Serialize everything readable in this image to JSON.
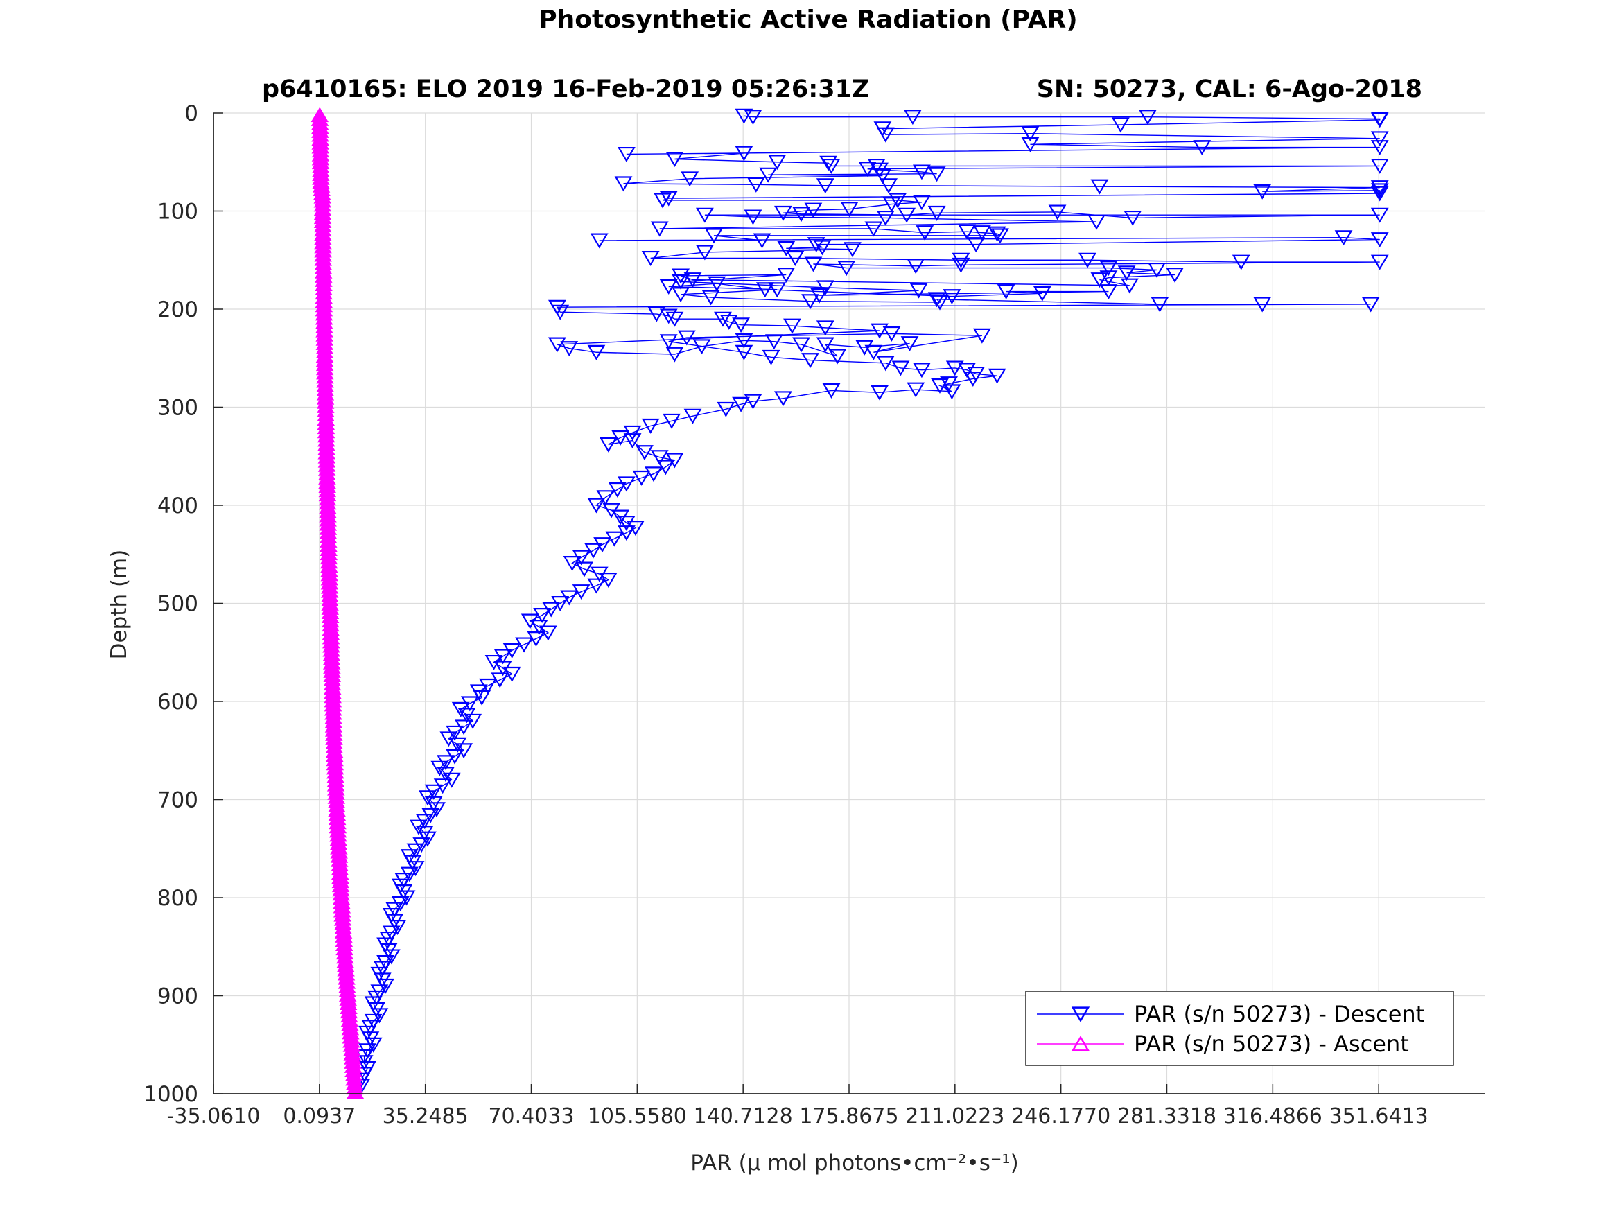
{
  "chart_data": {
    "type": "scatter",
    "title": "Photosynthetic Active Radiation (PAR)",
    "subtitle_left": "p6410165: ELO 2019 16-Feb-2019 05:26:31Z",
    "subtitle_right": "SN: 50273, CAL: 6-Ago-2018",
    "xlabel": "PAR (μ mol photons•cm⁻²•s⁻¹)",
    "ylabel": "Depth (m)",
    "xlim": [
      -35.061,
      386.7958
    ],
    "ylim": [
      0,
      1000
    ],
    "y_reversed": true,
    "grid": true,
    "legend_position": "bottom-right",
    "x_ticks": [
      -35.061,
      0.0937,
      35.2485,
      70.4033,
      105.558,
      140.7128,
      175.8675,
      211.0223,
      246.177,
      281.3318,
      316.4866,
      351.6413
    ],
    "x_tick_labels": [
      "-35.0610",
      "0.0937",
      "35.2485",
      "70.4033",
      "105.5580",
      "140.7128",
      "175.8675",
      "211.0223",
      "246.1770",
      "281.3318",
      "316.4866",
      "351.6413"
    ],
    "y_ticks": [
      0,
      100,
      200,
      300,
      400,
      500,
      600,
      700,
      800,
      900,
      1000
    ],
    "y_tick_labels": [
      "0",
      "100",
      "200",
      "300",
      "400",
      "500",
      "600",
      "700",
      "800",
      "900",
      "1000"
    ],
    "series": [
      {
        "name": "PAR (s/n 50273) - Descent",
        "color": "#0000ff",
        "marker": "triangle-down",
        "points": [
          [
            141,
            3
          ],
          [
            144,
            4
          ],
          [
            197,
            4
          ],
          [
            275,
            4
          ],
          [
            352,
            6
          ],
          [
            352,
            7
          ],
          [
            266,
            12
          ],
          [
            187,
            16
          ],
          [
            188,
            22
          ],
          [
            236,
            21
          ],
          [
            352,
            26
          ],
          [
            236,
            32
          ],
          [
            293,
            35
          ],
          [
            352,
            35
          ],
          [
            102,
            42
          ],
          [
            141,
            41
          ],
          [
            118,
            47
          ],
          [
            152,
            50
          ],
          [
            169,
            51
          ],
          [
            170,
            54
          ],
          [
            185,
            54
          ],
          [
            352,
            54
          ],
          [
            182,
            57
          ],
          [
            186,
            58
          ],
          [
            200,
            60
          ],
          [
            205,
            62
          ],
          [
            149,
            63
          ],
          [
            187,
            64
          ],
          [
            123,
            67
          ],
          [
            101,
            72
          ],
          [
            145,
            73
          ],
          [
            168,
            74
          ],
          [
            189,
            74
          ],
          [
            259,
            75
          ],
          [
            352,
            76
          ],
          [
            313,
            80
          ],
          [
            352,
            79
          ],
          [
            352,
            82
          ],
          [
            116,
            87
          ],
          [
            114,
            89
          ],
          [
            192,
            89
          ],
          [
            200,
            91
          ],
          [
            190,
            93
          ],
          [
            176,
            98
          ],
          [
            164,
            99
          ],
          [
            154,
            102
          ],
          [
            160,
            103
          ],
          [
            195,
            104
          ],
          [
            205,
            102
          ],
          [
            245,
            101
          ],
          [
            270,
            107
          ],
          [
            352,
            104
          ],
          [
            128,
            104
          ],
          [
            144,
            106
          ],
          [
            188,
            107
          ],
          [
            258,
            111
          ],
          [
            113,
            118
          ],
          [
            184,
            118
          ],
          [
            201,
            122
          ],
          [
            215,
            121
          ],
          [
            220,
            122
          ],
          [
            225,
            123
          ],
          [
            226,
            125
          ],
          [
            131,
            125
          ],
          [
            147,
            130
          ],
          [
            93,
            130
          ],
          [
            340,
            127
          ],
          [
            352,
            129
          ],
          [
            218,
            134
          ],
          [
            165,
            134
          ],
          [
            167,
            137
          ],
          [
            155,
            138
          ],
          [
            177,
            139
          ],
          [
            128,
            142
          ],
          [
            110,
            148
          ],
          [
            158,
            148
          ],
          [
            213,
            150
          ],
          [
            255,
            150
          ],
          [
            306,
            152
          ],
          [
            352,
            152
          ],
          [
            213,
            155
          ],
          [
            198,
            156
          ],
          [
            164,
            154
          ],
          [
            175,
            158
          ],
          [
            262,
            158
          ],
          [
            278,
            160
          ],
          [
            268,
            163
          ],
          [
            284,
            165
          ],
          [
            262,
            168
          ],
          [
            259,
            170
          ],
          [
            269,
            176
          ],
          [
            124,
            170
          ],
          [
            120,
            166
          ],
          [
            155,
            165
          ],
          [
            120,
            172
          ],
          [
            168,
            178
          ],
          [
            199,
            181
          ],
          [
            166,
            186
          ],
          [
            262,
            182
          ],
          [
            228,
            182
          ],
          [
            240,
            184
          ],
          [
            210,
            187
          ],
          [
            148,
            180
          ],
          [
            132,
            174
          ],
          [
            116,
            177
          ],
          [
            152,
            180
          ],
          [
            120,
            185
          ],
          [
            130,
            188
          ],
          [
            163,
            192
          ],
          [
            206,
            193
          ],
          [
            205,
            190
          ],
          [
            279,
            195
          ],
          [
            313,
            195
          ],
          [
            349,
            195
          ],
          [
            79,
            198
          ],
          [
            80,
            203
          ],
          [
            112,
            205
          ],
          [
            116,
            207
          ],
          [
            118,
            210
          ],
          [
            134,
            210
          ],
          [
            136,
            213
          ],
          [
            140,
            216
          ],
          [
            157,
            217
          ],
          [
            168,
            219
          ],
          [
            186,
            222
          ],
          [
            79,
            236
          ],
          [
            83,
            240
          ],
          [
            92,
            244
          ],
          [
            118,
            246
          ],
          [
            127,
            238
          ],
          [
            141,
            232
          ],
          [
            151,
            233
          ],
          [
            160,
            236
          ],
          [
            172,
            248
          ],
          [
            168,
            236
          ],
          [
            181,
            239
          ],
          [
            196,
            235
          ],
          [
            184,
            244
          ],
          [
            220,
            227
          ],
          [
            190,
            225
          ],
          [
            122,
            229
          ],
          [
            116,
            233
          ],
          [
            141,
            244
          ],
          [
            150,
            249
          ],
          [
            163,
            252
          ],
          [
            188,
            255
          ],
          [
            193,
            260
          ],
          [
            200,
            262
          ],
          [
            211,
            260
          ],
          [
            215,
            262
          ],
          [
            218,
            266
          ],
          [
            225,
            268
          ],
          [
            217,
            271
          ],
          [
            209,
            276
          ],
          [
            206,
            278
          ],
          [
            210,
            284
          ],
          [
            198,
            282
          ],
          [
            186,
            285
          ],
          [
            170,
            283
          ],
          [
            154,
            291
          ],
          [
            144,
            294
          ],
          [
            140,
            297
          ],
          [
            135,
            302
          ],
          [
            124,
            309
          ],
          [
            117,
            314
          ],
          [
            110,
            319
          ],
          [
            104,
            326
          ],
          [
            100,
            331
          ],
          [
            96,
            338
          ],
          [
            104,
            334
          ],
          [
            108,
            346
          ],
          [
            113,
            351
          ],
          [
            118,
            354
          ],
          [
            115,
            361
          ],
          [
            111,
            368
          ],
          [
            107,
            372
          ],
          [
            102,
            378
          ],
          [
            99,
            384
          ],
          [
            95,
            392
          ],
          [
            92,
            400
          ],
          [
            97,
            405
          ],
          [
            100,
            412
          ],
          [
            102,
            418
          ],
          [
            105,
            423
          ],
          [
            102,
            428
          ],
          [
            98,
            434
          ],
          [
            94,
            440
          ],
          [
            91,
            446
          ],
          [
            87,
            453
          ],
          [
            84,
            459
          ],
          [
            88,
            465
          ],
          [
            93,
            470
          ],
          [
            96,
            476
          ],
          [
            92,
            482
          ],
          [
            87,
            488
          ],
          [
            83,
            494
          ],
          [
            80,
            500
          ],
          [
            77,
            506
          ],
          [
            74,
            512
          ],
          [
            70,
            518
          ],
          [
            73,
            524
          ],
          [
            76,
            530
          ],
          [
            72,
            536
          ],
          [
            68,
            542
          ],
          [
            64,
            548
          ],
          [
            61,
            554
          ],
          [
            58,
            560
          ],
          [
            61,
            566
          ],
          [
            64,
            572
          ],
          [
            60,
            578
          ],
          [
            56,
            584
          ],
          [
            53,
            590
          ],
          [
            54,
            596
          ],
          [
            50,
            602
          ],
          [
            47,
            608
          ],
          [
            49,
            614
          ],
          [
            51,
            620
          ],
          [
            48,
            626
          ],
          [
            45,
            632
          ],
          [
            43,
            638
          ],
          [
            46,
            644
          ],
          [
            48,
            650
          ],
          [
            45,
            656
          ],
          [
            42,
            662
          ],
          [
            40,
            668
          ],
          [
            42,
            674
          ],
          [
            44,
            680
          ],
          [
            41,
            686
          ],
          [
            38,
            692
          ],
          [
            36,
            698
          ],
          [
            38,
            704
          ],
          [
            39,
            710
          ],
          [
            37,
            716
          ],
          [
            35,
            722
          ],
          [
            33,
            728
          ],
          [
            35,
            734
          ],
          [
            36,
            740
          ],
          [
            34,
            746
          ],
          [
            32,
            752
          ],
          [
            30,
            758
          ],
          [
            31,
            764
          ],
          [
            32,
            770
          ],
          [
            30,
            776
          ],
          [
            28,
            782
          ],
          [
            27,
            788
          ],
          [
            28,
            794
          ],
          [
            29,
            800
          ],
          [
            27,
            806
          ],
          [
            25,
            812
          ],
          [
            24,
            818
          ],
          [
            25,
            824
          ],
          [
            26,
            830
          ],
          [
            24,
            836
          ],
          [
            23,
            842
          ],
          [
            22,
            848
          ],
          [
            23,
            854
          ],
          [
            24,
            860
          ],
          [
            22,
            866
          ],
          [
            21,
            872
          ],
          [
            20,
            878
          ],
          [
            21,
            884
          ],
          [
            22,
            890
          ],
          [
            20,
            896
          ],
          [
            19,
            902
          ],
          [
            18,
            908
          ],
          [
            19,
            914
          ],
          [
            20,
            920
          ],
          [
            18,
            926
          ],
          [
            17,
            932
          ],
          [
            16,
            938
          ],
          [
            17,
            944
          ],
          [
            18,
            950
          ],
          [
            16,
            956
          ],
          [
            15,
            962
          ],
          [
            15,
            968
          ],
          [
            16,
            974
          ],
          [
            15,
            980
          ],
          [
            14,
            986
          ],
          [
            14,
            992
          ]
        ]
      },
      {
        "name": "PAR (s/n 50273) - Ascent",
        "color": "#ff00ff",
        "marker": "triangle-up",
        "points": [
          [
            12,
            998
          ],
          [
            11.5,
            980
          ],
          [
            10.8,
            950
          ],
          [
            10,
            920
          ],
          [
            9.3,
            890
          ],
          [
            8.6,
            860
          ],
          [
            8,
            830
          ],
          [
            7.4,
            800
          ],
          [
            6.9,
            770
          ],
          [
            6.4,
            740
          ],
          [
            5.9,
            710
          ],
          [
            5.5,
            680
          ],
          [
            5.1,
            650
          ],
          [
            4.8,
            620
          ],
          [
            4.5,
            590
          ],
          [
            4.2,
            560
          ],
          [
            3.9,
            530
          ],
          [
            3.6,
            500
          ],
          [
            3.4,
            470
          ],
          [
            3.1,
            440
          ],
          [
            2.9,
            410
          ],
          [
            2.7,
            380
          ],
          [
            2.5,
            350
          ],
          [
            2.3,
            320
          ],
          [
            2.1,
            290
          ],
          [
            1.9,
            260
          ],
          [
            1.8,
            230
          ],
          [
            1.6,
            200
          ],
          [
            1.5,
            170
          ],
          [
            1.3,
            140
          ],
          [
            1.2,
            110
          ],
          [
            1.1,
            85
          ],
          [
            0.6,
            70
          ],
          [
            0.5,
            50
          ],
          [
            0.4,
            30
          ],
          [
            0.3,
            10
          ],
          [
            0.2,
            2
          ]
        ]
      }
    ]
  }
}
